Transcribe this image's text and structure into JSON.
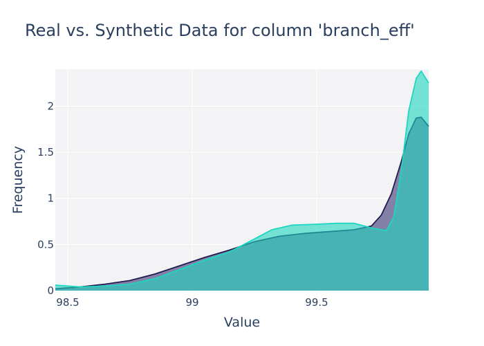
{
  "chart_data": {
    "type": "area",
    "title": "Real vs. Synthetic Data for column 'branch_eff'",
    "xlabel": "Value",
    "ylabel": "Frequency",
    "xlim": [
      98.45,
      99.95
    ],
    "ylim": [
      0,
      2.4
    ],
    "x_ticks": [
      98.5,
      99,
      99.5
    ],
    "x_tick_labels": [
      "98.5",
      "99",
      "99.5"
    ],
    "y_ticks": [
      0,
      0.5,
      1,
      1.5,
      2
    ],
    "y_tick_labels": [
      "0",
      "0.5",
      "1",
      "1.5",
      "2"
    ],
    "grid": true,
    "legend": "none",
    "series": [
      {
        "color": "#1f1a4f",
        "fill": "rgba(40,35,100,0.55)",
        "x": [
          98.45,
          98.55,
          98.65,
          98.75,
          98.85,
          98.95,
          99.05,
          99.15,
          99.25,
          99.35,
          99.45,
          99.55,
          99.65,
          99.72,
          99.76,
          99.8,
          99.84,
          99.87,
          99.9,
          99.92,
          99.95
        ],
        "y": [
          0.02,
          0.04,
          0.07,
          0.11,
          0.18,
          0.27,
          0.36,
          0.44,
          0.53,
          0.59,
          0.62,
          0.64,
          0.66,
          0.7,
          0.82,
          1.05,
          1.4,
          1.7,
          1.87,
          1.88,
          1.78
        ]
      },
      {
        "color": "#1fd6c0",
        "fill": "rgba(31,214,192,0.6)",
        "x": [
          98.45,
          98.55,
          98.65,
          98.75,
          98.85,
          98.95,
          99.05,
          99.15,
          99.25,
          99.32,
          99.4,
          99.5,
          99.58,
          99.65,
          99.72,
          99.78,
          99.81,
          99.84,
          99.87,
          99.9,
          99.92,
          99.95
        ],
        "y": [
          0.06,
          0.04,
          0.05,
          0.07,
          0.13,
          0.23,
          0.33,
          0.42,
          0.56,
          0.66,
          0.71,
          0.72,
          0.73,
          0.73,
          0.68,
          0.65,
          0.8,
          1.3,
          1.95,
          2.3,
          2.38,
          2.25
        ]
      }
    ]
  }
}
